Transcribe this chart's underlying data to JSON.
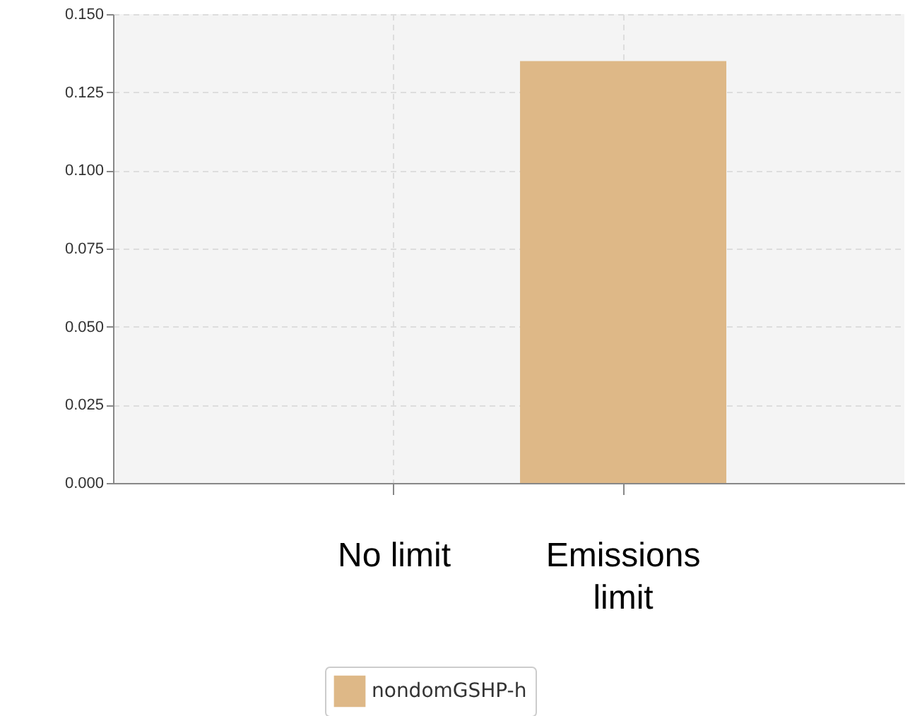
{
  "chart_data": {
    "type": "bar",
    "categories": [
      "No limit",
      "Emissions limit"
    ],
    "series": [
      {
        "name": "nondomGSHP-h",
        "color": "#deb887",
        "values": [
          null,
          0.135
        ]
      }
    ],
    "ylim": [
      0,
      0.15
    ],
    "yticks": [
      {
        "value": 0,
        "label": "0.000"
      },
      {
        "value": 0.025,
        "label": "0.025"
      },
      {
        "value": 0.05,
        "label": "0.050"
      },
      {
        "value": 0.075,
        "label": "0.075"
      },
      {
        "value": 0.1,
        "label": "0.100"
      },
      {
        "value": 0.125,
        "label": "0.125"
      },
      {
        "value": 0.15,
        "label": "0.150"
      }
    ],
    "grid": true,
    "legend": "bottom"
  }
}
